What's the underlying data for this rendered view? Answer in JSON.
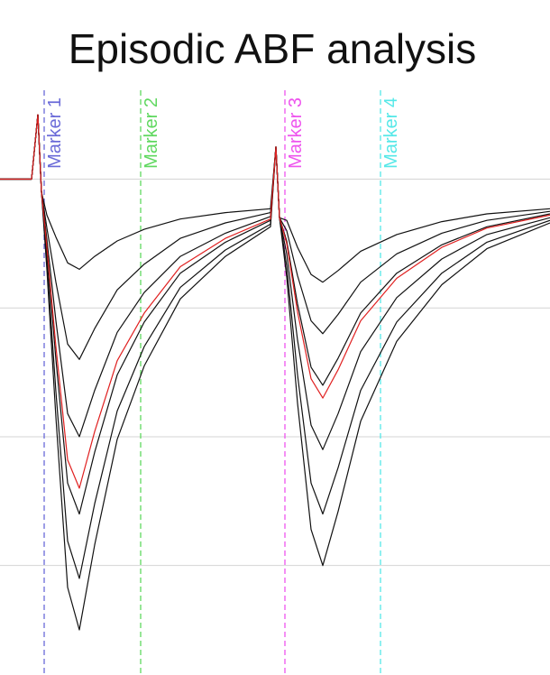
{
  "chart_data": {
    "type": "line",
    "title": "Episodic ABF analysis",
    "xlim": [
      0,
      610
    ],
    "ylim": [
      -3.85,
      0.69
    ],
    "yticks": [
      0,
      -1,
      -2,
      -3
    ],
    "grid": true,
    "x": [
      0,
      35,
      42,
      46,
      52,
      62,
      75,
      88,
      105,
      130,
      160,
      200,
      250,
      300,
      306,
      310,
      318,
      330,
      345,
      358,
      375,
      400,
      440,
      490,
      540,
      610
    ],
    "markers": [
      {
        "label": "Marker 1",
        "x": 49,
        "color": "#6a6ad8"
      },
      {
        "label": "Marker 2",
        "x": 156,
        "color": "#5fd85f"
      },
      {
        "label": "Marker 3",
        "x": 316,
        "color": "#ee55ee"
      },
      {
        "label": "Marker 4",
        "x": 422,
        "color": "#55e8e8"
      }
    ],
    "series": [
      {
        "color": "#111111",
        "values": [
          0,
          0,
          0.5,
          -0.1,
          -0.28,
          -0.45,
          -0.65,
          -0.7,
          -0.6,
          -0.48,
          -0.39,
          -0.31,
          -0.26,
          -0.23,
          0.25,
          -0.3,
          -0.32,
          -0.53,
          -0.74,
          -0.8,
          -0.71,
          -0.56,
          -0.43,
          -0.33,
          -0.27,
          -0.23
        ]
      },
      {
        "color": "#111111",
        "values": [
          0,
          0,
          0.5,
          -0.1,
          -0.38,
          -0.8,
          -1.28,
          -1.4,
          -1.16,
          -0.86,
          -0.66,
          -0.46,
          -0.34,
          -0.26,
          0.25,
          -0.3,
          -0.4,
          -0.75,
          -1.1,
          -1.2,
          -1.05,
          -0.8,
          -0.58,
          -0.42,
          -0.32,
          -0.25
        ]
      },
      {
        "color": "#111111",
        "values": [
          0,
          0,
          0.5,
          -0.1,
          -0.47,
          -1.1,
          -1.82,
          -2.0,
          -1.64,
          -1.19,
          -0.88,
          -0.6,
          -0.42,
          -0.29,
          0.25,
          -0.3,
          -0.48,
          -0.97,
          -1.46,
          -1.6,
          -1.39,
          -1.04,
          -0.73,
          -0.51,
          -0.37,
          -0.27
        ]
      },
      {
        "color": "#111111",
        "values": [
          0,
          0,
          0.5,
          -0.1,
          -0.56,
          -1.4,
          -2.36,
          -2.6,
          -2.12,
          -1.52,
          -1.11,
          -0.73,
          -0.49,
          -0.32,
          0.25,
          -0.3,
          -0.58,
          -1.25,
          -1.91,
          -2.1,
          -1.82,
          -1.34,
          -0.92,
          -0.62,
          -0.43,
          -0.3
        ]
      },
      {
        "color": "#111111",
        "values": [
          0,
          0,
          0.5,
          -0.1,
          -0.64,
          -1.65,
          -2.81,
          -3.1,
          -2.52,
          -1.8,
          -1.3,
          -0.84,
          -0.55,
          -0.35,
          0.25,
          -0.3,
          -0.68,
          -1.52,
          -2.36,
          -2.6,
          -2.24,
          -1.64,
          -1.11,
          -0.73,
          -0.49,
          -0.32
        ]
      },
      {
        "color": "#111111",
        "values": [
          0,
          0,
          0.5,
          -0.1,
          -0.7,
          -1.85,
          -3.17,
          -3.5,
          -2.84,
          -2.02,
          -1.45,
          -0.93,
          -0.6,
          -0.37,
          0.25,
          -0.3,
          -0.76,
          -1.74,
          -2.72,
          -3.0,
          -2.58,
          -1.88,
          -1.26,
          -0.82,
          -0.54,
          -0.34
        ]
      },
      {
        "color": "#e02020",
        "values": [
          0,
          0,
          0.5,
          -0.1,
          -0.53,
          -1.3,
          -2.18,
          -2.4,
          -1.96,
          -1.41,
          -1.04,
          -0.68,
          -0.46,
          -0.31,
          0.25,
          -0.3,
          -0.5,
          -1.03,
          -1.55,
          -1.7,
          -1.48,
          -1.1,
          -0.77,
          -0.53,
          -0.38,
          -0.28
        ]
      }
    ]
  }
}
